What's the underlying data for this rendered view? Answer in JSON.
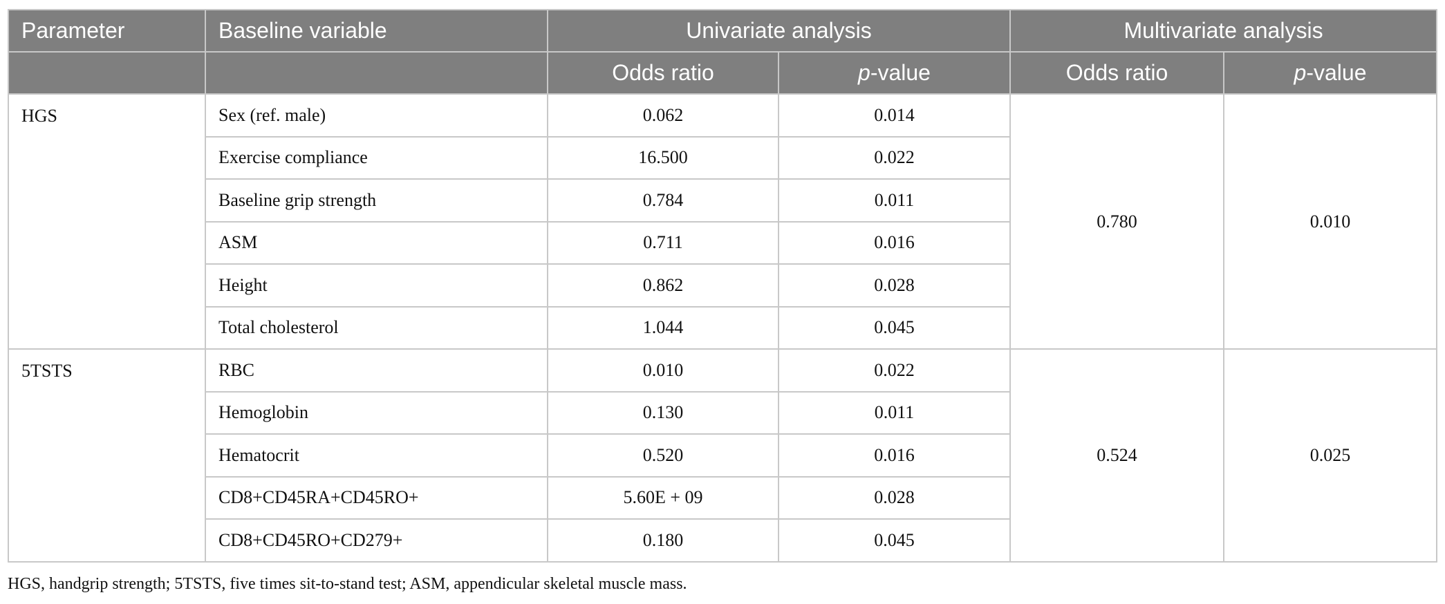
{
  "table": {
    "header": {
      "parameter": "Parameter",
      "baseline": "Baseline variable",
      "univariate": "Univariate analysis",
      "multivariate": "Multivariate analysis",
      "uni_or": "Odds ratio",
      "uni_p": "p-value",
      "multi_or": "Odds ratio",
      "multi_p": "p-value"
    },
    "groups": [
      {
        "parameter": "HGS",
        "rows": [
          [
            "Sex (ref. male)",
            "0.062",
            "0.014"
          ],
          [
            "Exercise compliance",
            "16.500",
            "0.022"
          ],
          [
            "Baseline grip strength",
            "0.784",
            "0.011"
          ],
          [
            "ASM",
            "0.711",
            "0.016"
          ],
          [
            "Height",
            "0.862",
            "0.028"
          ],
          [
            "Total cholesterol",
            "1.044",
            "0.045"
          ]
        ],
        "multi_or": "0.780",
        "multi_p": "0.010"
      },
      {
        "parameter": "5TSTS",
        "rows": [
          [
            "RBC",
            "0.010",
            "0.022"
          ],
          [
            "Hemoglobin",
            "0.130",
            "0.011"
          ],
          [
            "Hematocrit",
            "0.520",
            "0.016"
          ],
          [
            "CD8+CD45RA+CD45RO+",
            "5.60E + 09",
            "0.028"
          ],
          [
            "CD8+CD45RO+CD279+",
            "0.180",
            "0.045"
          ]
        ],
        "multi_or": "0.524",
        "multi_p": "0.025"
      }
    ]
  },
  "footnote": "HGS, handgrip strength; 5TSTS, five times sit-to-stand test; ASM, appendicular skeletal muscle mass."
}
